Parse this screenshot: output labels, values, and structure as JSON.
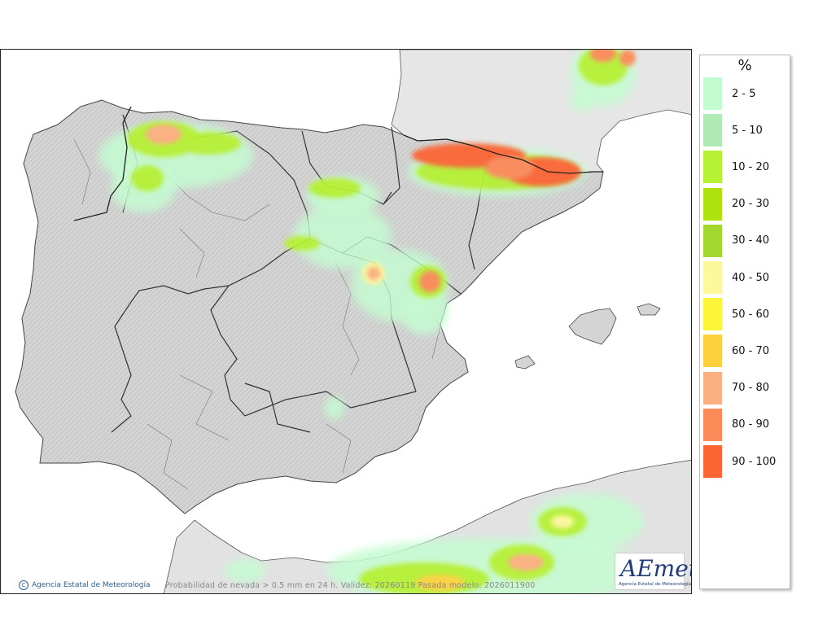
{
  "legend": {
    "title": "%",
    "items": [
      {
        "label": "2 - 5",
        "color": "#c4fcd0"
      },
      {
        "label": "5 - 10",
        "color": "#b1eab5"
      },
      {
        "label": "10 - 20",
        "color": "#b6f136"
      },
      {
        "label": "20 - 30",
        "color": "#aee20e"
      },
      {
        "label": "30 - 40",
        "color": "#a2d730"
      },
      {
        "label": "40 - 50",
        "color": "#fdf89b"
      },
      {
        "label": "50 - 60",
        "color": "#fcf539"
      },
      {
        "label": "60 - 70",
        "color": "#fcd13e"
      },
      {
        "label": "70 - 80",
        "color": "#fcaf80"
      },
      {
        "label": "80 - 90",
        "color": "#fb8a59"
      },
      {
        "label": "90 - 100",
        "color": "#fb6534"
      }
    ]
  },
  "map": {
    "credit": "Agencia Estatal de Meteorología",
    "caption": "Probabilidad de nevada > 0.5 mm en 24 h. Validez: 20260119 Pasada modelo: 2026011900",
    "logo_text": "AEmet",
    "logo_subtext": "Agencia Estatal de Meteorología",
    "land_color": "#d8d8d8",
    "sea_color": "#ffffff"
  }
}
